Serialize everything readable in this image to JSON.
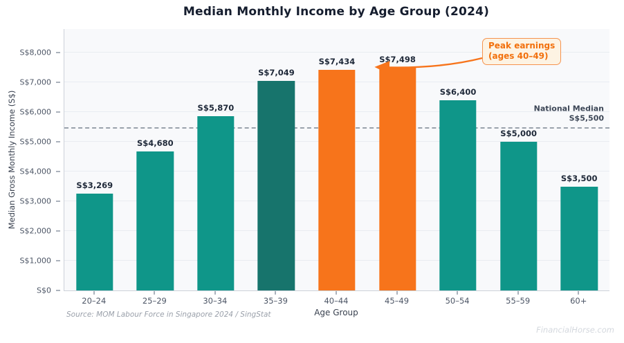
{
  "title": "Median Monthly Income by Age Group (2024)",
  "source": "Source: MOM Labour Force in Singapore 2024 / SingStat",
  "watermark": "FinancialHorse.com",
  "colors": {
    "teal": "#0f9689",
    "dark_teal": "#17746c",
    "orange": "#f7741b",
    "annotation_text": "#f2700c",
    "annotation_bg": "#fdf3e3",
    "annotation_border": "#f5924d",
    "ref_line": "#99a1ab",
    "value_label": "#1f2939",
    "plot_bg": "#f8f9fb"
  },
  "chart_data": {
    "type": "bar",
    "title": "Median Monthly Income by Age Group (2024)",
    "xlabel": "Age Group",
    "ylabel": "Median Gross Monthly Income (S$)",
    "categories": [
      "20–24",
      "25–29",
      "30–34",
      "35–39",
      "40–44",
      "45–49",
      "50–54",
      "55–59",
      "60+"
    ],
    "values": [
      3269,
      4680,
      5870,
      7049,
      7434,
      7498,
      6400,
      5000,
      3500
    ],
    "bar_labels": [
      "S$3,269",
      "S$4,680",
      "S$5,870",
      "S$7,049",
      "S$7,434",
      "S$7,498",
      "S$6,400",
      "S$5,000",
      "S$3,500"
    ],
    "bar_color_roles": [
      "teal",
      "teal",
      "teal",
      "dark_teal",
      "orange",
      "orange",
      "teal",
      "teal",
      "teal"
    ],
    "ylim": [
      0,
      8800
    ],
    "grid": "horizontal",
    "legend": "none",
    "yticks": [
      {
        "value": 0,
        "label": "S$0"
      },
      {
        "value": 1000,
        "label": "S$1,000"
      },
      {
        "value": 2000,
        "label": "S$2,000"
      },
      {
        "value": 3000,
        "label": "S$3,000"
      },
      {
        "value": 4000,
        "label": "S$4,000"
      },
      {
        "value": 5000,
        "label": "S$5,000"
      },
      {
        "value": 6000,
        "label": "S$6,000"
      },
      {
        "value": 7000,
        "label": "S$7,000"
      },
      {
        "value": 8000,
        "label": "S$8,000"
      }
    ],
    "reference_line": {
      "value": 5500,
      "label": [
        "National Median",
        "S$5,500"
      ]
    },
    "annotation": {
      "text": [
        "Peak earnings",
        "(ages 40–49)"
      ],
      "target_categories": [
        "40–44",
        "45–49"
      ]
    }
  }
}
